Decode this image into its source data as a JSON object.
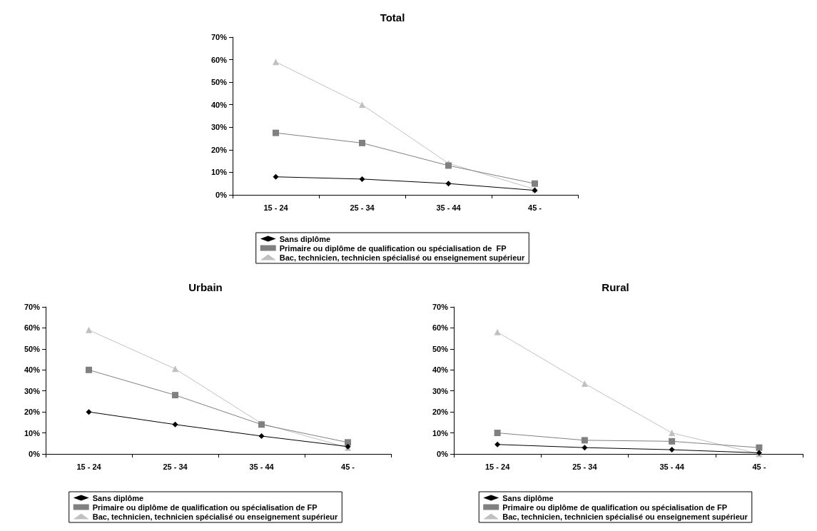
{
  "chart_data": [
    {
      "type": "line",
      "title": "Total",
      "categories": [
        "15 - 24",
        "25 - 34",
        "35 - 44",
        "45 -"
      ],
      "series": [
        {
          "name": "Sans diplôme",
          "color": "#000000",
          "marker": "diamond",
          "values": [
            8,
            7,
            5,
            2
          ]
        },
        {
          "name": "Primaire ou diplôme de qualification ou spécialisation de  FP",
          "color": "#808080",
          "marker": "square",
          "values": [
            27.5,
            23,
            13,
            5
          ]
        },
        {
          "name": "Bac, technicien, technicien spécialisé ou enseignement supérieur",
          "color": "#c0c0c0",
          "marker": "triangle",
          "values": [
            59,
            40,
            14,
            2.5
          ]
        }
      ],
      "ylim": [
        0,
        70
      ],
      "yticks": [
        {
          "value": 0,
          "label": "0%"
        },
        {
          "value": 10,
          "label": "10%"
        },
        {
          "value": 20,
          "label": "20%"
        },
        {
          "value": 30,
          "label": "30%"
        },
        {
          "value": 40,
          "label": "40%"
        },
        {
          "value": 50,
          "label": "50%"
        },
        {
          "value": 60,
          "label": "60%"
        },
        {
          "value": 70,
          "label": "70%"
        }
      ],
      "grid": false,
      "legend": "bottom"
    },
    {
      "type": "line",
      "title": "Urbain",
      "categories": [
        "15 - 24",
        "25 - 34",
        "35 - 44",
        "45 -"
      ],
      "series": [
        {
          "name": "Sans diplôme",
          "color": "#000000",
          "marker": "diamond",
          "values": [
            20,
            14,
            8.5,
            3.5
          ]
        },
        {
          "name": "Primaire ou diplôme de qualification ou spécialisation de FP",
          "color": "#808080",
          "marker": "square",
          "values": [
            40,
            28,
            14,
            5.5
          ]
        },
        {
          "name": "Bac, technicien, technicien spécialisé ou enseignement supérieur",
          "color": "#c0c0c0",
          "marker": "triangle",
          "values": [
            59,
            40.5,
            14.5,
            3
          ]
        }
      ],
      "ylim": [
        0,
        70
      ],
      "yticks": [
        {
          "value": 0,
          "label": "0%"
        },
        {
          "value": 10,
          "label": "10%"
        },
        {
          "value": 20,
          "label": "20%"
        },
        {
          "value": 30,
          "label": "30%"
        },
        {
          "value": 40,
          "label": "40%"
        },
        {
          "value": 50,
          "label": "50%"
        },
        {
          "value": 60,
          "label": "60%"
        },
        {
          "value": 70,
          "label": "70%"
        }
      ],
      "grid": false,
      "legend": "bottom"
    },
    {
      "type": "line",
      "title": "Rural",
      "categories": [
        "15 - 24",
        "25 - 34",
        "35 - 44",
        "45 -"
      ],
      "series": [
        {
          "name": "Sans diplôme",
          "color": "#000000",
          "marker": "diamond",
          "values": [
            4.5,
            3,
            2,
            0.5
          ]
        },
        {
          "name": "Primaire ou diplôme de qualification ou spécialisation de FP",
          "color": "#808080",
          "marker": "square",
          "values": [
            10,
            6.5,
            6,
            3
          ]
        },
        {
          "name": "Bac, technicien, technicien spécialisé ou enseignement supérieur",
          "color": "#c0c0c0",
          "marker": "triangle",
          "values": [
            58,
            33.5,
            10,
            0
          ]
        }
      ],
      "ylim": [
        0,
        70
      ],
      "yticks": [
        {
          "value": 0,
          "label": "0%"
        },
        {
          "value": 10,
          "label": "10%"
        },
        {
          "value": 20,
          "label": "20%"
        },
        {
          "value": 30,
          "label": "30%"
        },
        {
          "value": 40,
          "label": "40%"
        },
        {
          "value": 50,
          "label": "50%"
        },
        {
          "value": 60,
          "label": "60%"
        },
        {
          "value": 70,
          "label": "70%"
        }
      ],
      "grid": false,
      "legend": "bottom"
    }
  ]
}
